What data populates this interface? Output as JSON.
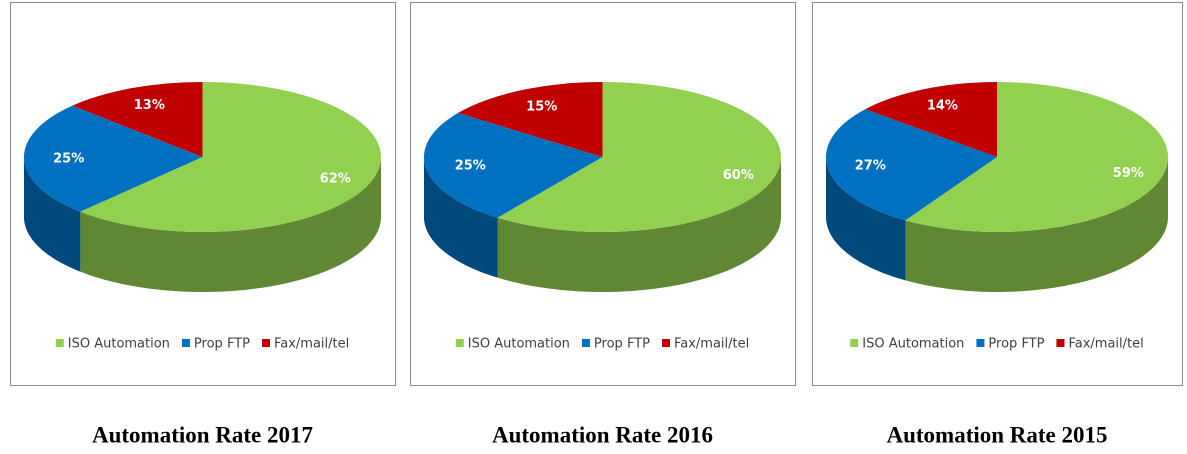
{
  "chart_data": [
    {
      "type": "pie",
      "title": "Automation Rate 2017",
      "categories": [
        "ISO Automation",
        "Prop FTP",
        "Fax/mail/tel"
      ],
      "values": [
        62,
        25,
        13
      ],
      "value_labels": [
        "62%",
        "25%",
        "13%"
      ],
      "colors": [
        "#92d050",
        "#0070c0",
        "#c00000"
      ],
      "legend": "bottom"
    },
    {
      "type": "pie",
      "title": "Automation Rate 2016",
      "categories": [
        "ISO Automation",
        "Prop FTP",
        "Fax/mail/tel"
      ],
      "values": [
        60,
        25,
        15
      ],
      "value_labels": [
        "60%",
        "25%",
        "15%"
      ],
      "colors": [
        "#92d050",
        "#0070c0",
        "#c00000"
      ],
      "legend": "bottom"
    },
    {
      "type": "pie",
      "title": "Automation Rate 2015",
      "categories": [
        "ISO Automation",
        "Prop FTP",
        "Fax/mail/tel"
      ],
      "values": [
        59,
        27,
        14
      ],
      "value_labels": [
        "59%",
        "27%",
        "14%"
      ],
      "colors": [
        "#92d050",
        "#0070c0",
        "#c00000"
      ],
      "legend": "bottom"
    }
  ]
}
